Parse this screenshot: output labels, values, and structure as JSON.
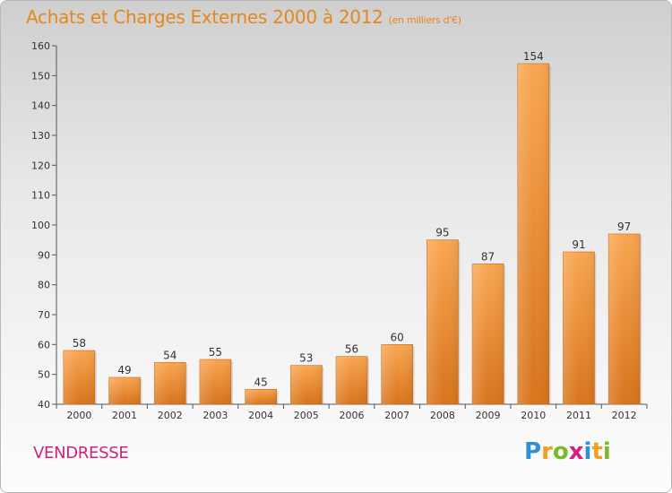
{
  "title": "Achats et Charges Externes 2000 à 2012",
  "unit": "(en milliers d'€)",
  "commune": "VENDRESSE",
  "logo": {
    "letters": [
      "P",
      "r",
      "o",
      "x",
      "i",
      "t",
      "i"
    ],
    "colors": [
      "#2f8fd8",
      "#f0a020",
      "#7ab929",
      "#d2207d",
      "#2f8fd8",
      "#f0a020",
      "#7ab929"
    ]
  },
  "colors": {
    "title": "#e4871e",
    "commune": "#d2207d",
    "bar_light": "#f9a650",
    "bar_dark": "#d8741c"
  },
  "chart_data": {
    "type": "bar",
    "categories": [
      "2000",
      "2001",
      "2002",
      "2003",
      "2004",
      "2005",
      "2006",
      "2007",
      "2008",
      "2009",
      "2010",
      "2011",
      "2012"
    ],
    "values": [
      58,
      49,
      54,
      55,
      45,
      53,
      56,
      60,
      95,
      87,
      154,
      91,
      97
    ],
    "ylim": [
      40,
      160
    ],
    "yticks": [
      40,
      50,
      60,
      70,
      80,
      90,
      100,
      110,
      120,
      130,
      140,
      150,
      160
    ],
    "grid": false,
    "data_labels": true
  }
}
